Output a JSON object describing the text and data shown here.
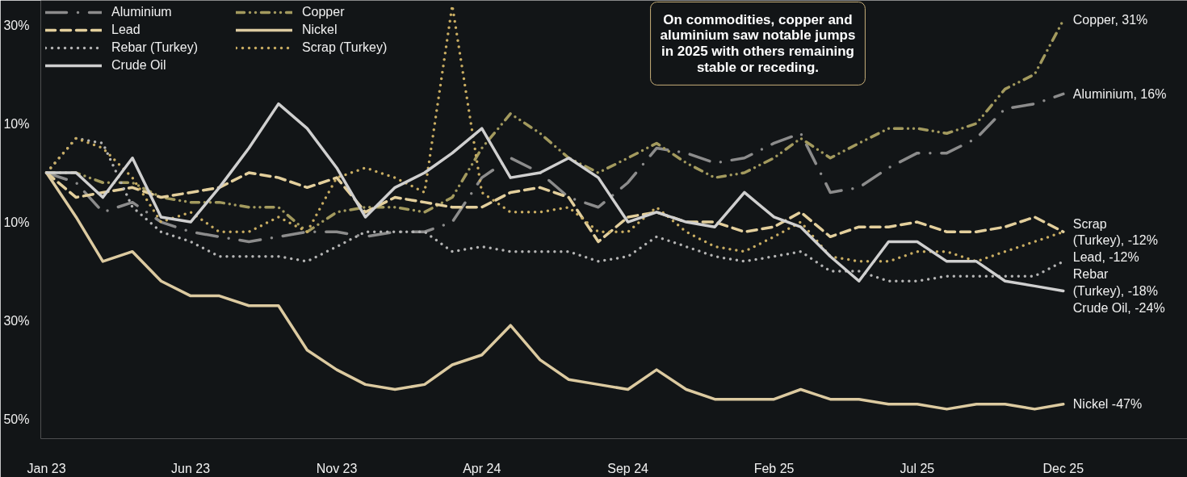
{
  "chart_data": {
    "type": "line",
    "x": [
      "2023-01",
      "2023-02",
      "2023-03",
      "2023-04",
      "2023-05",
      "2023-06",
      "2023-07",
      "2023-08",
      "2023-09",
      "2023-10",
      "2023-11",
      "2023-12",
      "2024-01",
      "2024-02",
      "2024-03",
      "2024-04",
      "2024-05",
      "2024-06",
      "2024-07",
      "2024-08",
      "2024-09",
      "2024-10",
      "2024-11",
      "2024-12",
      "2025-01",
      "2025-02",
      "2025-03",
      "2025-04",
      "2025-05",
      "2025-06",
      "2025-07",
      "2025-08",
      "2025-09",
      "2025-10",
      "2025-11",
      "2025-12"
    ],
    "series": [
      {
        "name": "Aluminium",
        "color": "#8c8c8c",
        "line_style": "dashdot",
        "values": [
          0,
          -2,
          -8,
          -6,
          -10,
          -12,
          -13,
          -14,
          -13,
          -12,
          -12,
          -13,
          -12,
          -12,
          -10,
          -1,
          3,
          0,
          -5,
          -7,
          -2,
          5,
          4,
          2,
          3,
          6,
          8,
          -4,
          -3,
          1,
          4,
          4,
          7,
          13,
          14,
          16
        ]
      },
      {
        "name": "Copper",
        "color": "#a39a5e",
        "line_style": "dashdotdot",
        "values": [
          0,
          0,
          -2,
          -2,
          -5,
          -6,
          -6,
          -7,
          -7,
          -12,
          -8,
          -7,
          -7,
          -8,
          -5,
          5,
          12,
          8,
          3,
          0,
          3,
          6,
          2,
          -1,
          0,
          3,
          7,
          3,
          6,
          9,
          9,
          8,
          10,
          17,
          20,
          31
        ]
      },
      {
        "name": "Lead",
        "color": "#e3cf9c",
        "line_style": "dashed",
        "values": [
          0,
          -5,
          -4,
          -3,
          -5,
          -4,
          -3,
          0,
          -1,
          -3,
          -1,
          -8,
          -5,
          -6,
          -7,
          -7,
          -4,
          -3,
          -5,
          -14,
          -9,
          -8,
          -10,
          -10,
          -12,
          -11,
          -8,
          -13,
          -11,
          -11,
          -10,
          -12,
          -12,
          -11,
          -9,
          -12
        ]
      },
      {
        "name": "Nickel",
        "color": "#dccaa0",
        "line_style": "solid",
        "values": [
          0,
          -9,
          -18,
          -16,
          -22,
          -25,
          -25,
          -27,
          -27,
          -36,
          -40,
          -43,
          -44,
          -43,
          -39,
          -37,
          -31,
          -38,
          -42,
          -43,
          -44,
          -40,
          -44,
          -46,
          -46,
          -46,
          -44,
          -46,
          -46,
          -47,
          -47,
          -48,
          -47,
          -47,
          -48,
          -47
        ]
      },
      {
        "name": "Rebar (Turkey)",
        "color": "#b4b4b4",
        "line_style": "dotted",
        "values": [
          0,
          7,
          6,
          -7,
          -12,
          -14,
          -17,
          -17,
          -17,
          -18,
          -15,
          -12,
          -12,
          -12,
          -16,
          -15,
          -16,
          -16,
          -16,
          -18,
          -17,
          -13,
          -15,
          -17,
          -18,
          -17,
          -16,
          -20,
          -20,
          -22,
          -22,
          -21,
          -21,
          -21,
          -21,
          -18
        ]
      },
      {
        "name": "Scrap (Turkey)",
        "color": "#c9ad62",
        "line_style": "dotted",
        "values": [
          0,
          7,
          5,
          -1,
          -10,
          -8,
          -12,
          -12,
          -9,
          -12,
          -1,
          1,
          -1,
          -4,
          34,
          -4,
          -8,
          -8,
          -7,
          -12,
          -12,
          -7,
          -12,
          -15,
          -16,
          -13,
          -10,
          -17,
          -18,
          -18,
          -16,
          -16,
          -18,
          -16,
          -14,
          -12
        ]
      },
      {
        "name": "Crude Oil",
        "color": "#cfcfcf",
        "line_style": "solid",
        "values": [
          0,
          0,
          -5,
          3,
          -9,
          -10,
          -3,
          5,
          14,
          9,
          1,
          -9,
          -3,
          0,
          4,
          9,
          -1,
          0,
          3,
          -1,
          -10,
          -8,
          -10,
          -11,
          -4,
          -9,
          -11,
          -17,
          -22,
          -14,
          -14,
          -18,
          -18,
          -22,
          -23,
          -24
        ]
      }
    ],
    "xlim": [
      "2022-12-26",
      "2026-04-10"
    ],
    "xticks": [
      {
        "value": "2023-01",
        "label": "Jan 23"
      },
      {
        "value": "2023-06",
        "label": "Jun 23"
      },
      {
        "value": "2023-11",
        "label": "Nov 23"
      },
      {
        "value": "2024-04",
        "label": "Apr 24"
      },
      {
        "value": "2024-09",
        "label": "Sep 24"
      },
      {
        "value": "2025-02",
        "label": "Feb 25"
      },
      {
        "value": "2025-07",
        "label": "Jul 25"
      },
      {
        "value": "2025-12",
        "label": "Dec 25"
      }
    ],
    "ylim": [
      -54,
      35
    ],
    "yticks": [
      {
        "value": 30,
        "label": "30%"
      },
      {
        "value": 10,
        "label": "10%"
      },
      {
        "value": -10,
        "label": "10%"
      },
      {
        "value": -30,
        "label": "30%"
      },
      {
        "value": -50,
        "label": "50%"
      }
    ],
    "grid": false,
    "legend": "top left",
    "annotations": [
      "On commodities, copper and aluminium saw notable jumps in 2025 with others remaining stable or receding.",
      {
        "text": "Copper,  31%",
        "x": "2025-12",
        "y": 31
      },
      {
        "text": "Aluminium, 16%",
        "x": "2025-12",
        "y": 16
      },
      {
        "text": "Scrap\n(Turkey), -12%",
        "x": "2025-12",
        "y": -12
      },
      {
        "text": "Lead, -12%",
        "x": "2025-12",
        "y": -12
      },
      {
        "text": "Rebar\n(Turkey), -18%",
        "x": "2025-12",
        "y": -18
      },
      {
        "text": "Crude Oil, -24%",
        "x": "2025-12",
        "y": -24
      },
      {
        "text": "Nickel -47%",
        "x": "2025-12",
        "y": -47
      }
    ]
  }
}
